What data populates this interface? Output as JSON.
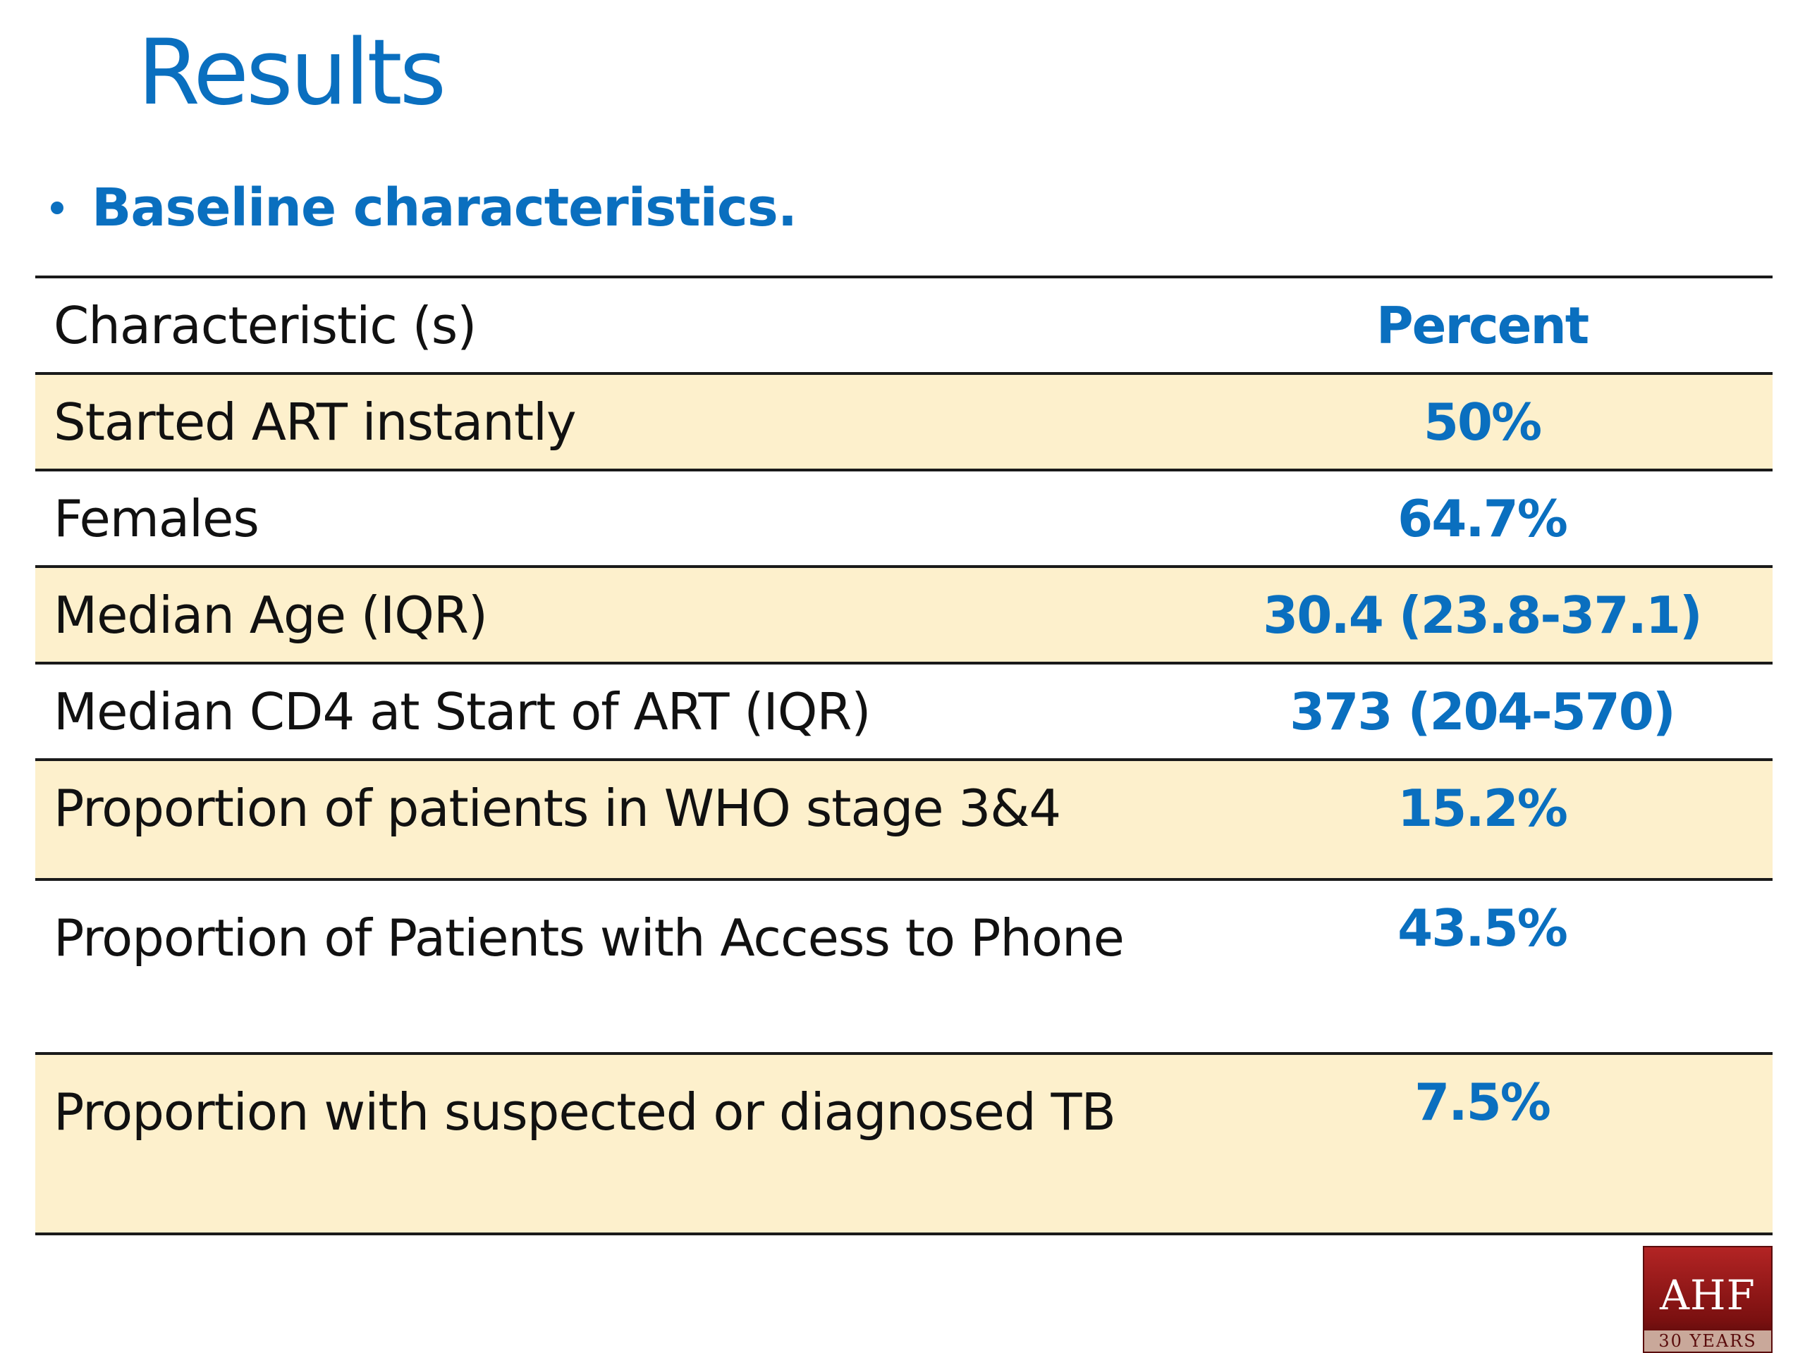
{
  "title": "Results",
  "bullet": "Baseline characteristics.",
  "table": {
    "header": {
      "label": "Characteristic (s)",
      "value": "Percent"
    },
    "rows": [
      {
        "label": "Started ART instantly",
        "value": "50%"
      },
      {
        "label": "Females",
        "value": "64.7%"
      },
      {
        "label": "Median Age (IQR)",
        "value": "30.4 (23.8-37.1)"
      },
      {
        "label": "Median CD4 at Start of ART (IQR)",
        "value": "373 (204-570)"
      },
      {
        "label": "Proportion of patients in WHO stage 3&4",
        "value": "15.2%"
      },
      {
        "label": "Proportion of Patients with Access to Phone",
        "value": "43.5%"
      },
      {
        "label": "Proportion with suspected or diagnosed TB",
        "value": "7.5%"
      }
    ]
  },
  "logo": {
    "text": "AHF",
    "subtext": "30 YEARS"
  },
  "colors": {
    "accent": "#0a6fbf",
    "row_shade": "#fdf0cc",
    "rule": "#1a1a1a"
  }
}
